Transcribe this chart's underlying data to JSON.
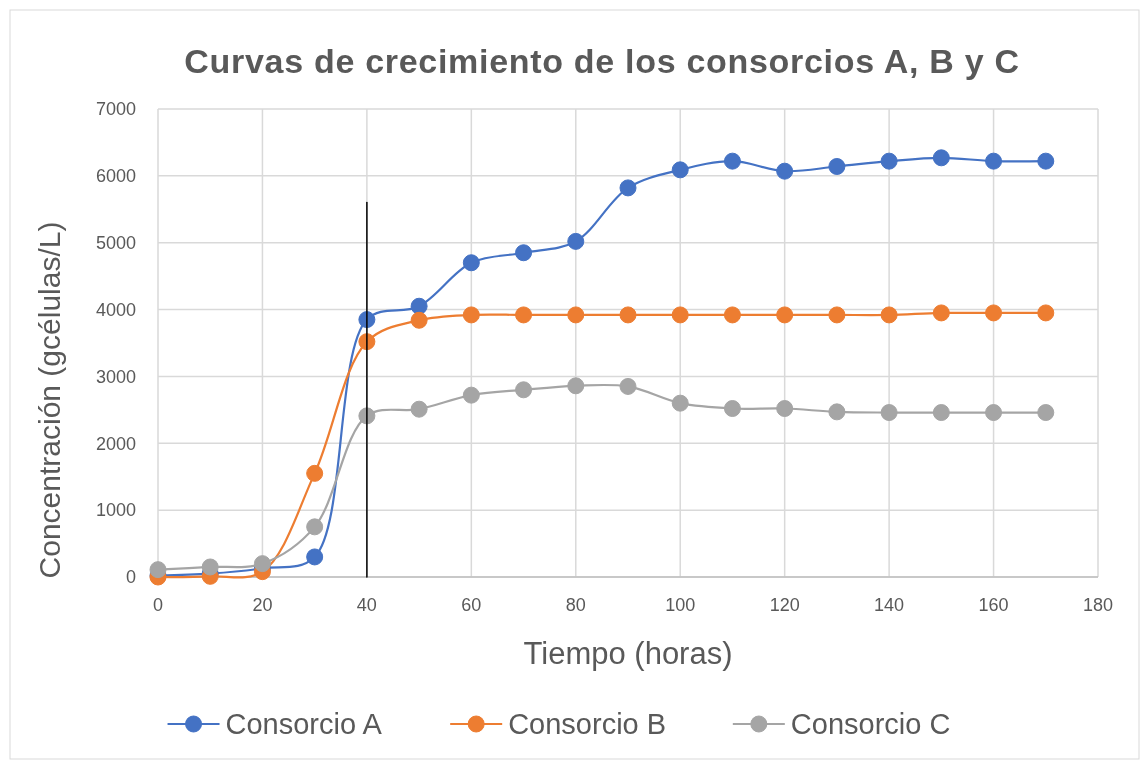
{
  "chart_data": {
    "type": "line",
    "title": "Curvas de crecimiento de los consorcios A, B y C",
    "xlabel": "Tiempo (horas)",
    "ylabel": "Concentración (gcélulas/L)",
    "x": [
      0,
      10,
      20,
      30,
      40,
      50,
      60,
      70,
      80,
      90,
      100,
      110,
      120,
      130,
      140,
      150,
      160,
      170
    ],
    "series": [
      {
        "name": "Consorcio A",
        "color": "#4472c4",
        "values": [
          20,
          50,
          130,
          300,
          3850,
          4050,
          4700,
          4850,
          5020,
          5820,
          6090,
          6220,
          6070,
          6140,
          6220,
          6270,
          6220,
          6220
        ]
      },
      {
        "name": "Consorcio B",
        "color": "#ed7d31",
        "values": [
          0,
          10,
          80,
          1550,
          3520,
          3840,
          3920,
          3920,
          3920,
          3920,
          3920,
          3920,
          3920,
          3920,
          3920,
          3950,
          3950,
          3950
        ]
      },
      {
        "name": "Consorcio C",
        "color": "#a5a5a5",
        "values": [
          110,
          150,
          200,
          750,
          2410,
          2510,
          2720,
          2800,
          2860,
          2850,
          2600,
          2520,
          2520,
          2470,
          2460,
          2460,
          2460,
          2460
        ]
      },
      {
        "type": "line",
        "color": "#000000",
        "x": [
          40,
          40
        ],
        "values": [
          0,
          5600
        ],
        "marker": "none"
      }
    ],
    "xlim": [
      0,
      180
    ],
    "xticks": [
      0,
      20,
      40,
      60,
      80,
      100,
      120,
      140,
      160,
      180
    ],
    "ylim": [
      0,
      7000
    ],
    "yticks": [
      0,
      1000,
      2000,
      3000,
      4000,
      5000,
      6000,
      7000
    ],
    "grid": true,
    "legend": "bottom",
    "marker": "circle",
    "line_style": "solid"
  }
}
